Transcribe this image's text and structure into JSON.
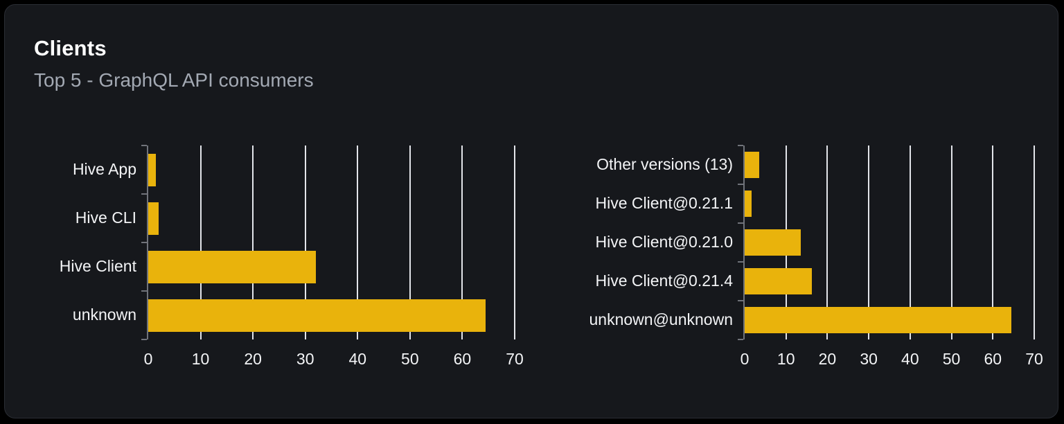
{
  "panel": {
    "title": "Clients",
    "subtitle": "Top 5 - GraphQL API consumers"
  },
  "colors": {
    "page_bg": "#000000",
    "panel_bg": "#16181c",
    "panel_border": "#2a2d34",
    "bar": "#e9b30c",
    "grid": "#e3e5ea",
    "axis": "#70737a",
    "label": "#f3f4f6",
    "subtitle": "#a3a9b3"
  },
  "chart_data": [
    {
      "type": "bar",
      "orientation": "horizontal",
      "title": "",
      "categories": [
        "Hive App",
        "Hive CLI",
        "Hive Client",
        "unknown"
      ],
      "values": [
        1.5,
        2,
        32,
        64.4
      ],
      "xlim": [
        0,
        70
      ],
      "xticks": [
        0,
        10,
        20,
        30,
        40,
        50,
        60,
        70
      ],
      "grid": true,
      "legend": false,
      "bar_color": "#e9b30c"
    },
    {
      "type": "bar",
      "orientation": "horizontal",
      "title": "",
      "categories": [
        "Other versions (13)",
        "Hive Client@0.21.1",
        "Hive Client@0.21.0",
        "Hive Client@0.21.4",
        "unknown@unknown"
      ],
      "values": [
        3.6,
        1.6,
        13.5,
        16.2,
        64.5
      ],
      "xlim": [
        0,
        70
      ],
      "xticks": [
        0,
        10,
        20,
        30,
        40,
        50,
        60,
        70
      ],
      "grid": true,
      "legend": false,
      "bar_color": "#e9b30c"
    }
  ]
}
